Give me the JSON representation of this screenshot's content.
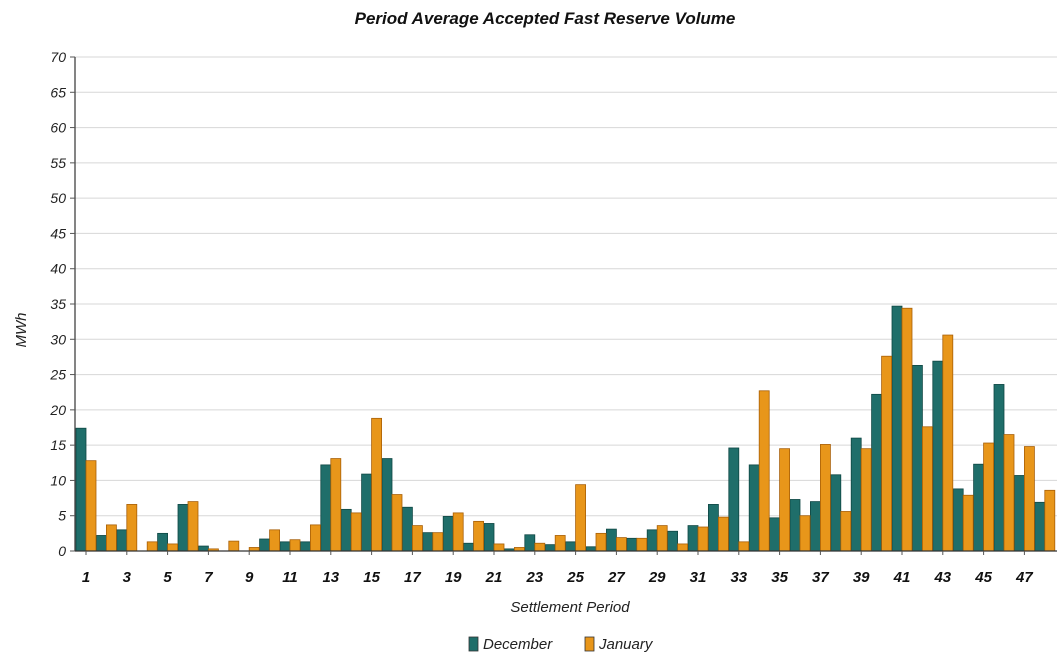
{
  "chart_data": {
    "type": "bar",
    "title": "Period Average Accepted Fast Reserve Volume",
    "xlabel": "Settlement Period",
    "ylabel": "MWh",
    "ylim": [
      0,
      70
    ],
    "yticks": [
      0,
      5,
      10,
      15,
      20,
      25,
      30,
      35,
      40,
      45,
      50,
      55,
      60,
      65,
      70
    ],
    "x_tick_labels": [
      "1",
      "3",
      "5",
      "7",
      "9",
      "11",
      "13",
      "15",
      "17",
      "19",
      "21",
      "23",
      "25",
      "27",
      "29",
      "31",
      "33",
      "35",
      "37",
      "39",
      "41",
      "43",
      "45",
      "47"
    ],
    "categories": [
      "1",
      "2",
      "3",
      "4",
      "5",
      "6",
      "7",
      "8",
      "9",
      "10",
      "11",
      "12",
      "13",
      "14",
      "15",
      "16",
      "17",
      "18",
      "19",
      "20",
      "21",
      "22",
      "23",
      "24",
      "25",
      "26",
      "27",
      "28",
      "29",
      "30",
      "31",
      "32",
      "33",
      "34",
      "35",
      "36",
      "37",
      "38",
      "39",
      "40",
      "41",
      "42",
      "43",
      "44",
      "45",
      "46",
      "47",
      "48"
    ],
    "grid": true,
    "legend_position": "bottom",
    "series": [
      {
        "name": "December",
        "color": "#1f6e6a",
        "values": [
          17.4,
          2.2,
          3.0,
          0.0,
          2.5,
          6.6,
          0.7,
          0.0,
          0.0,
          1.7,
          1.3,
          1.3,
          12.2,
          5.9,
          10.9,
          13.1,
          6.2,
          2.6,
          4.9,
          1.1,
          3.9,
          0.3,
          2.3,
          0.9,
          1.3,
          0.6,
          3.1,
          1.8,
          3.0,
          2.8,
          3.6,
          6.6,
          14.6,
          12.2,
          4.7,
          7.3,
          7.0,
          10.8,
          16.0,
          22.2,
          34.7,
          26.3,
          26.9,
          8.8,
          12.3,
          23.6,
          10.7,
          6.9
        ]
      },
      {
        "name": "January",
        "color": "#e8961a",
        "values": [
          12.8,
          3.7,
          6.6,
          1.3,
          1.0,
          7.0,
          0.3,
          1.4,
          0.5,
          3.0,
          1.6,
          3.7,
          13.1,
          5.4,
          18.8,
          8.0,
          3.6,
          2.6,
          5.4,
          4.2,
          1.0,
          0.5,
          1.1,
          2.2,
          9.4,
          2.5,
          1.9,
          1.8,
          3.6,
          1.0,
          3.4,
          4.8,
          1.3,
          22.7,
          14.5,
          5.0,
          15.1,
          5.6,
          14.5,
          27.6,
          34.4,
          17.6,
          30.6,
          7.9,
          15.3,
          16.5,
          14.8,
          8.6
        ]
      }
    ]
  }
}
